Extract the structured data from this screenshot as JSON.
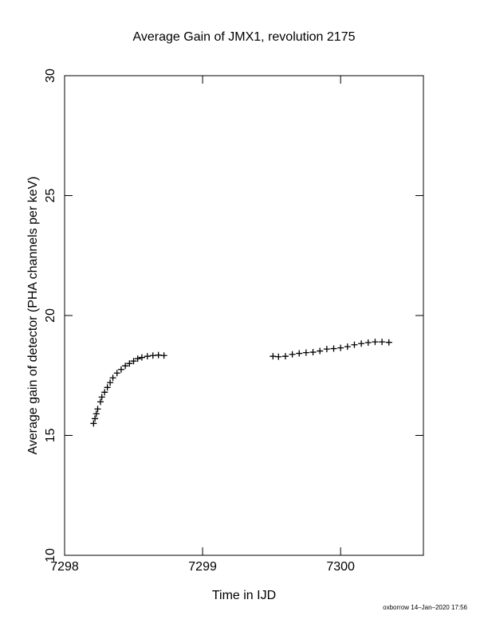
{
  "chart_data": {
    "type": "scatter",
    "title": "Average Gain of JMX1, revolution 2175",
    "x_label": "Time in IJD",
    "y_label": "Average gain of detector (PHA channels per keV)",
    "footer": "oxborrow 14–Jan–2020 17:56",
    "color": "#000000",
    "marker": "+",
    "xlim": [
      7298,
      7300.6
    ],
    "xticks": [
      7298,
      7299,
      7300
    ],
    "ylim": [
      10,
      30
    ],
    "yticks": [
      10,
      15,
      20,
      25,
      30
    ],
    "x": [
      7298.21,
      7298.22,
      7298.23,
      7298.24,
      7298.26,
      7298.27,
      7298.29,
      7298.31,
      7298.33,
      7298.35,
      7298.38,
      7298.41,
      7298.44,
      7298.47,
      7298.5,
      7298.53,
      7298.56,
      7298.6,
      7298.64,
      7298.68,
      7298.72,
      7299.51,
      7299.55,
      7299.6,
      7299.65,
      7299.7,
      7299.75,
      7299.8,
      7299.85,
      7299.9,
      7299.95,
      7300.0,
      7300.05,
      7300.1,
      7300.15,
      7300.2,
      7300.25,
      7300.3,
      7300.35
    ],
    "values": [
      15.5,
      15.7,
      15.9,
      16.1,
      16.4,
      16.6,
      16.8,
      17.0,
      17.2,
      17.4,
      17.6,
      17.75,
      17.9,
      18.0,
      18.1,
      18.2,
      18.25,
      18.3,
      18.33,
      18.35,
      18.33,
      18.3,
      18.28,
      18.3,
      18.38,
      18.42,
      18.45,
      18.47,
      18.52,
      18.6,
      18.62,
      18.65,
      18.7,
      18.78,
      18.83,
      18.87,
      18.9,
      18.9,
      18.88
    ]
  }
}
